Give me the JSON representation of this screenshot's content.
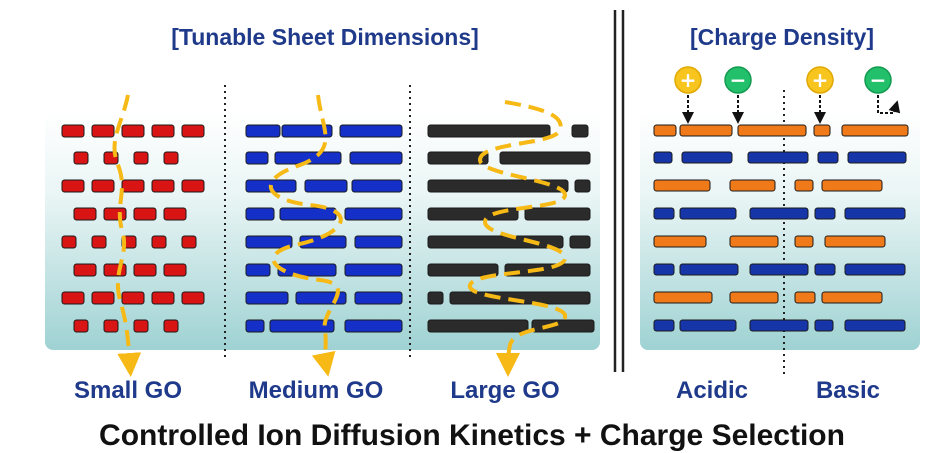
{
  "left_header": "[Tunable Sheet Dimensions]",
  "right_header": "[Charge Density]",
  "panels": [
    {
      "label": "Small GO",
      "sheet_color": "#d81414"
    },
    {
      "label": "Medium GO",
      "sheet_color": "#1530c8"
    },
    {
      "label": "Large GO",
      "sheet_color": "#2b2b2b"
    }
  ],
  "charge_labels": {
    "acidic": "Acidic",
    "basic": "Basic"
  },
  "charge_colors": {
    "positive": "#f7c51e",
    "negative": "#22c06a",
    "orange_sheet": "#f07a1a",
    "blue_sheet": "#1535a8"
  },
  "charge_signs": {
    "plus": "+",
    "minus": "−"
  },
  "ion_path_color": "#f6b915",
  "footer": "Controlled Ion Diffusion Kinetics + Charge Selection"
}
